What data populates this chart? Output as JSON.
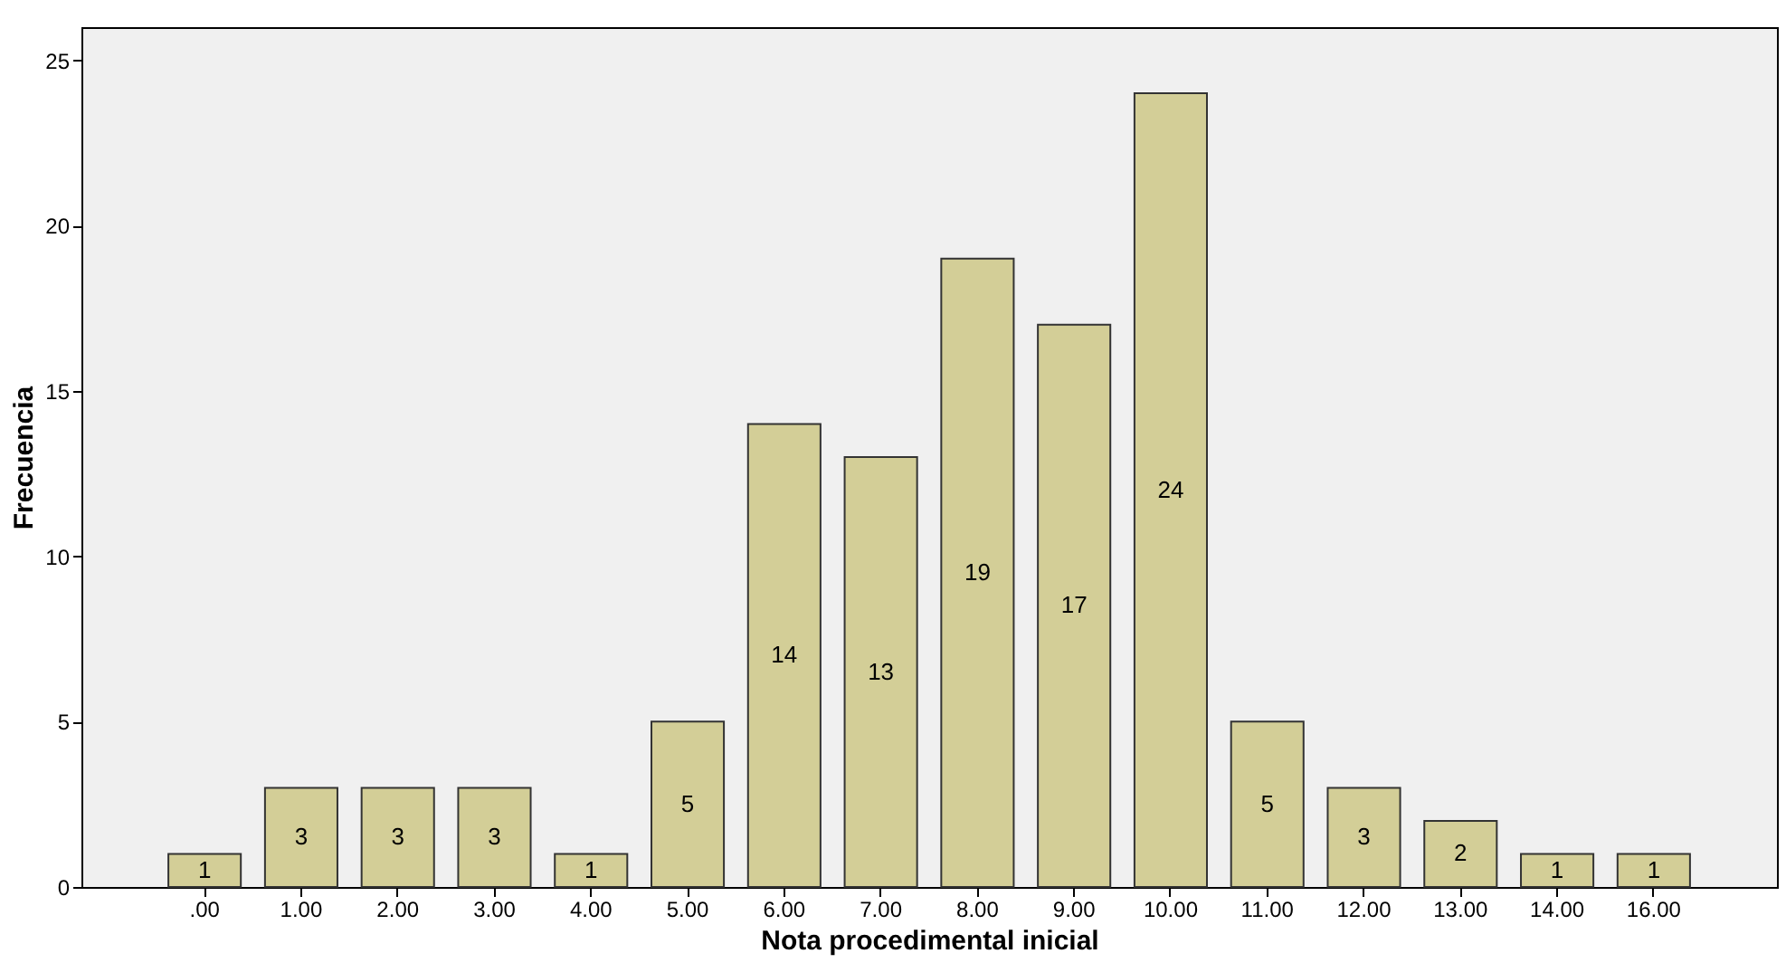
{
  "chart_data": {
    "type": "bar",
    "xlabel": "Nota procedimental inicial",
    "ylabel": "Frecuencia",
    "categories": [
      ".00",
      "1.00",
      "2.00",
      "3.00",
      "4.00",
      "5.00",
      "6.00",
      "7.00",
      "8.00",
      "9.00",
      "10.00",
      "11.00",
      "12.00",
      "13.00",
      "14.00",
      "16.00"
    ],
    "values": [
      1,
      3,
      3,
      3,
      1,
      5,
      14,
      13,
      19,
      17,
      24,
      5,
      3,
      2,
      1,
      1
    ],
    "color": "#d3ce97",
    "ylim": [
      0,
      26
    ],
    "yticks": [
      0,
      5,
      10,
      15,
      20,
      25
    ],
    "grid": false,
    "data_labels": true
  }
}
